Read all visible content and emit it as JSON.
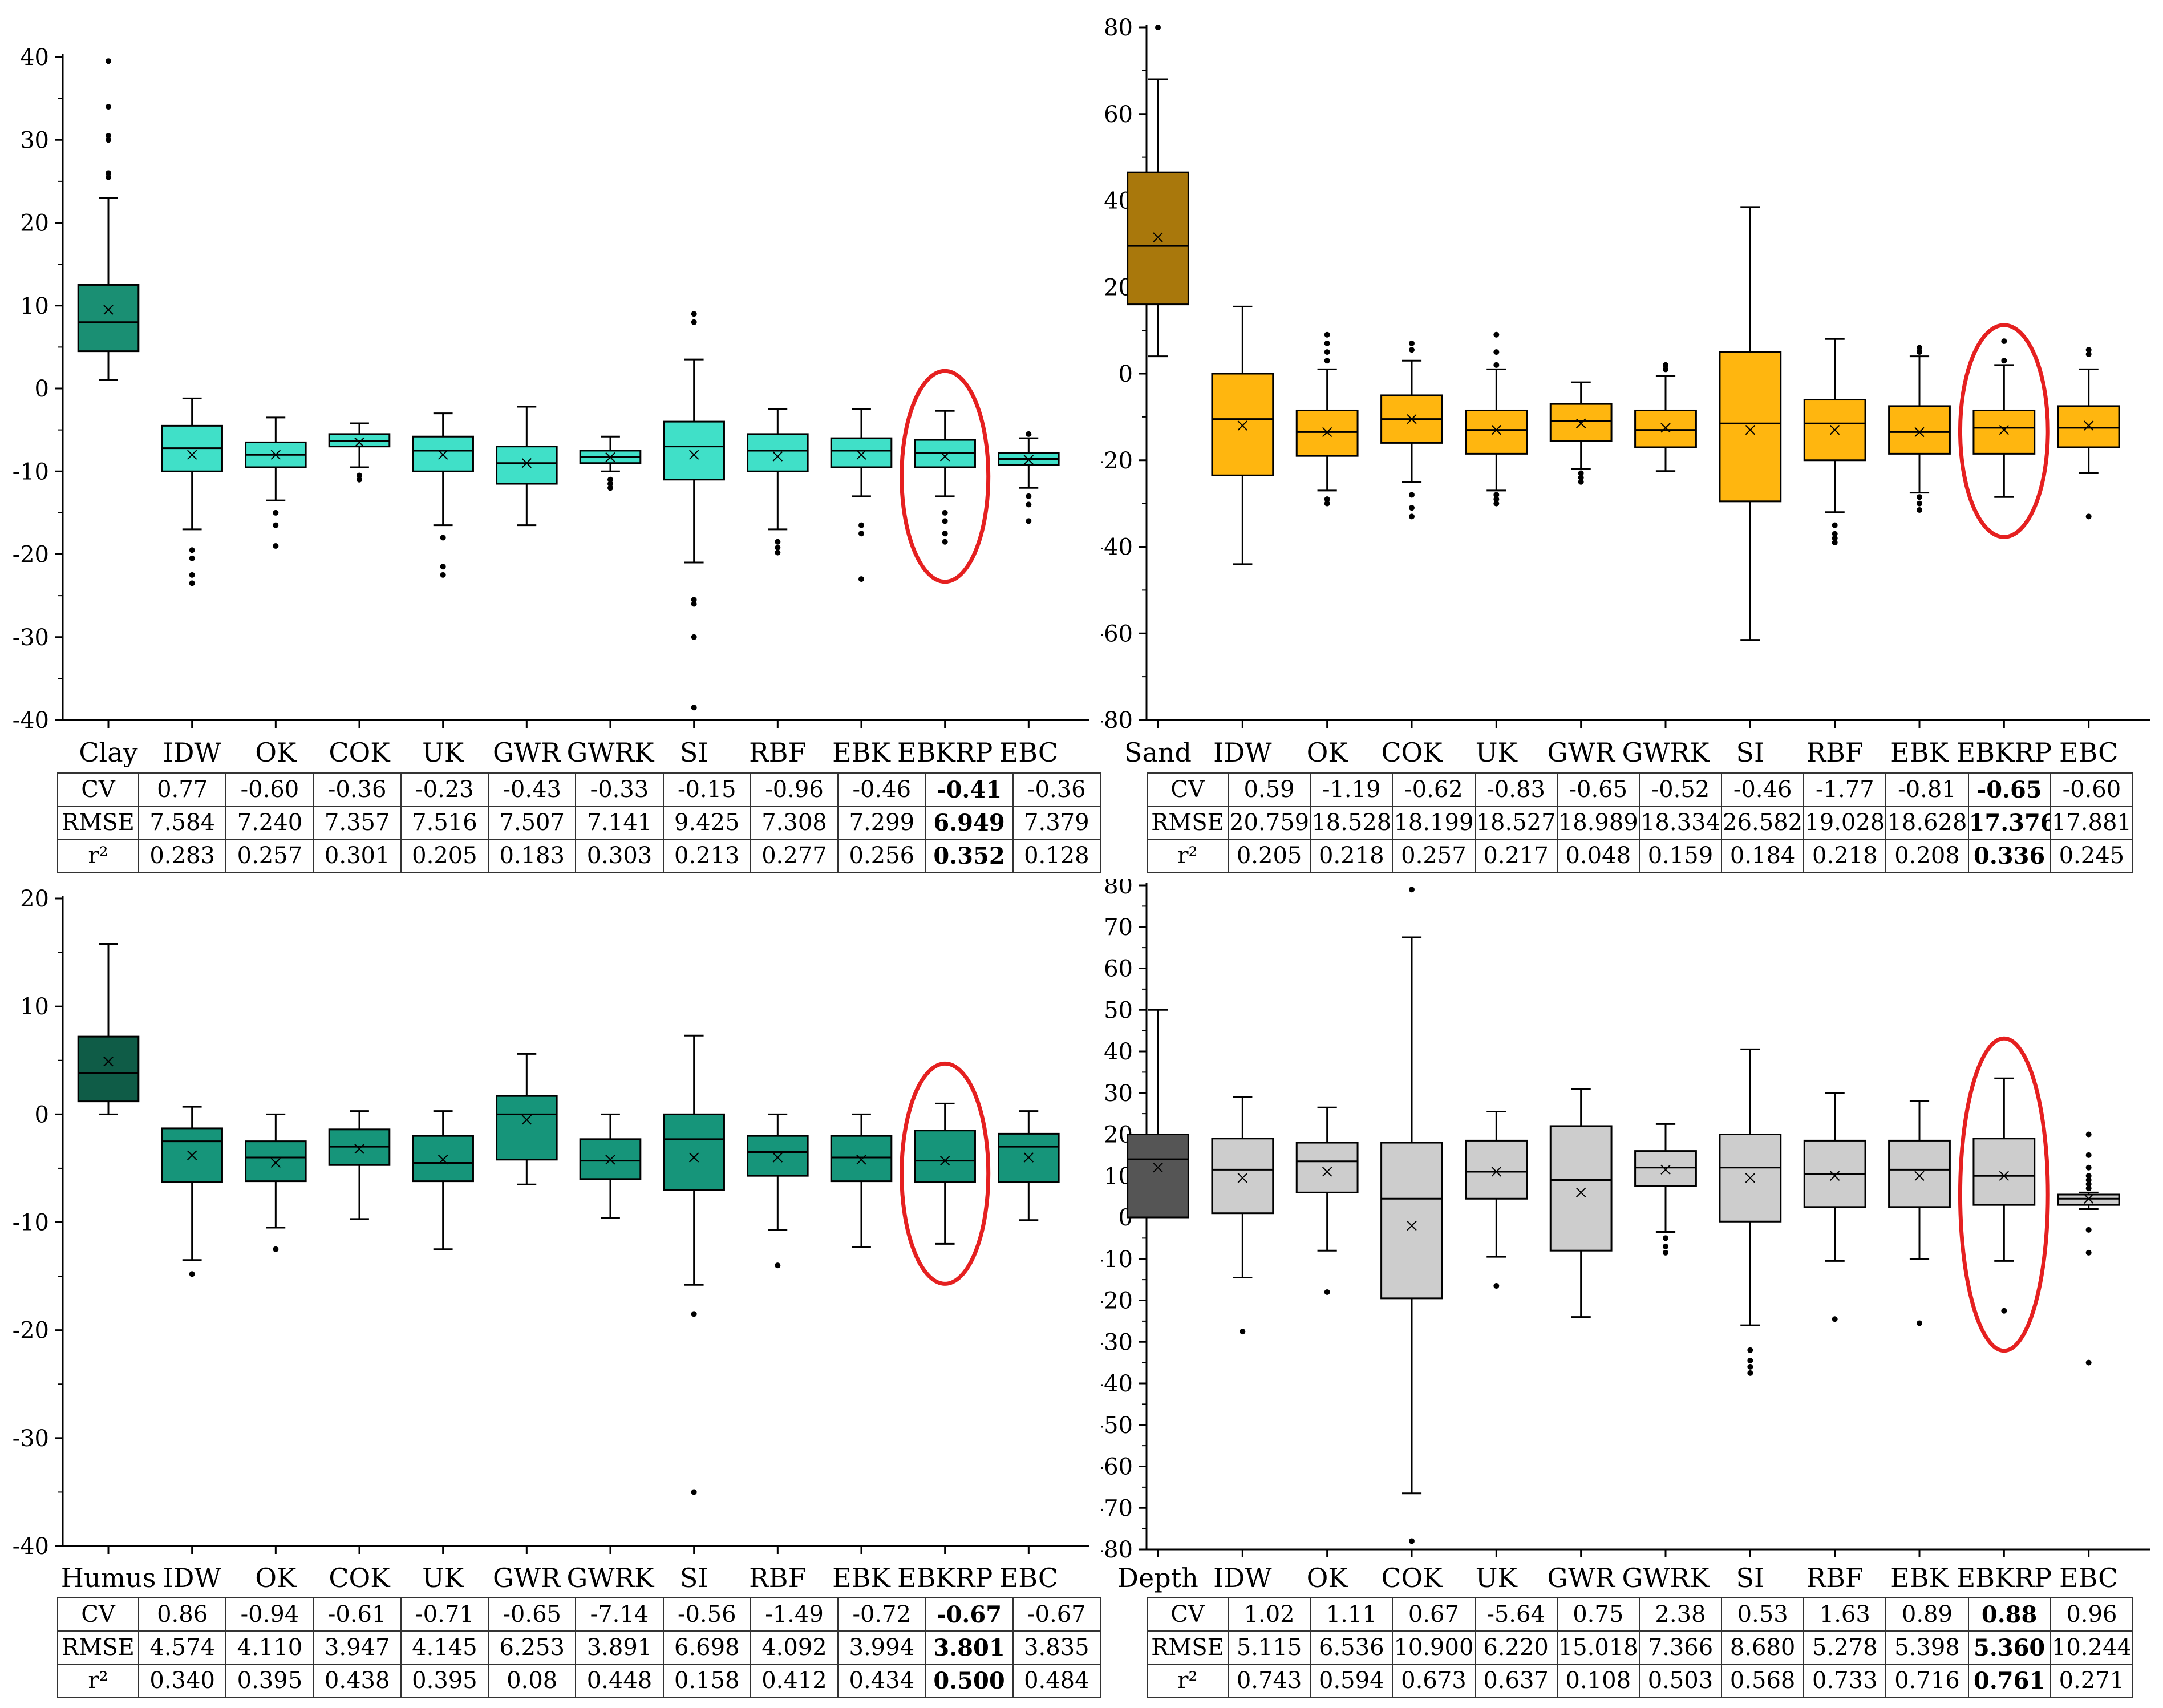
{
  "chart_data": [
    {
      "type": "box",
      "name": "clay",
      "ylim": [
        -40,
        40
      ],
      "yticks": [
        -40,
        -30,
        -20,
        -10,
        0,
        10,
        20,
        30,
        40
      ],
      "categories": [
        "Clay",
        "IDW",
        "OK",
        "COK",
        "UK",
        "GWR",
        "GWRK",
        "SI",
        "RBF",
        "EBK",
        "EBKRP",
        "EBC"
      ],
      "highlight_index": 10,
      "colors": {
        "first": "#1a8f73",
        "rest": "#40e0c8",
        "circle": "#e52020"
      },
      "boxes": [
        {
          "lo": 1,
          "q1": 4.5,
          "med": 8,
          "q3": 12.5,
          "hi": 23,
          "mean": 9.5,
          "out": [
            25.5,
            26,
            30,
            30.5,
            34,
            39.5
          ]
        },
        {
          "lo": -17,
          "q1": -10,
          "med": -7.2,
          "q3": -4.5,
          "hi": -1.2,
          "mean": -8,
          "out": [
            -19.5,
            -20.5,
            -22.5,
            -23.5
          ]
        },
        {
          "lo": -13.5,
          "q1": -9.5,
          "med": -8,
          "q3": -6.5,
          "hi": -3.5,
          "mean": -8,
          "out": [
            -15,
            -16.5,
            -19
          ]
        },
        {
          "lo": -9.5,
          "q1": -7,
          "med": -6.3,
          "q3": -5.5,
          "hi": -4.2,
          "mean": -6.5,
          "out": [
            -10.5,
            -11
          ]
        },
        {
          "lo": -16.5,
          "q1": -10,
          "med": -7.5,
          "q3": -5.8,
          "hi": -3,
          "mean": -8,
          "out": [
            -18,
            -21.5,
            -22.5
          ]
        },
        {
          "lo": -16.5,
          "q1": -11.5,
          "med": -9,
          "q3": -7,
          "hi": -2.2,
          "mean": -9,
          "out": []
        },
        {
          "lo": -10,
          "q1": -9,
          "med": -8.3,
          "q3": -7.5,
          "hi": -5.8,
          "mean": -8.3,
          "out": [
            -11,
            -11.5,
            -12
          ]
        },
        {
          "lo": -21,
          "q1": -11,
          "med": -7,
          "q3": -4,
          "hi": 3.5,
          "mean": -8,
          "out": [
            8,
            9,
            -25.5,
            -26,
            -30,
            -38.5
          ]
        },
        {
          "lo": -17,
          "q1": -10,
          "med": -7.5,
          "q3": -5.5,
          "hi": -2.5,
          "mean": -8.2,
          "out": [
            -18.5,
            -19.2,
            -19.8
          ]
        },
        {
          "lo": -13,
          "q1": -9.5,
          "med": -7.5,
          "q3": -6,
          "hi": -2.5,
          "mean": -8,
          "out": [
            -16.5,
            -17.5,
            -23
          ]
        },
        {
          "lo": -13,
          "q1": -9.5,
          "med": -7.8,
          "q3": -6.2,
          "hi": -2.7,
          "mean": -8.2,
          "out": [
            -15,
            -16,
            -17.5,
            -18.5
          ]
        },
        {
          "lo": -12,
          "q1": -9.2,
          "med": -8.5,
          "q3": -7.8,
          "hi": -6,
          "mean": -8.6,
          "out": [
            -5.5,
            -13,
            -14,
            -16
          ]
        }
      ]
    },
    {
      "type": "box",
      "name": "sand",
      "ylim": [
        -80,
        80
      ],
      "yticks": [
        -80,
        -60,
        -40,
        -20,
        0,
        20,
        40,
        60,
        80
      ],
      "categories": [
        "Sand",
        "IDW",
        "OK",
        "COK",
        "UK",
        "GWR",
        "GWRK",
        "SI",
        "RBF",
        "EBK",
        "EBKRP",
        "EBC"
      ],
      "highlight_index": 10,
      "colors": {
        "first": "#a9780c",
        "rest": "#ffb60f",
        "circle": "#e52020"
      },
      "boxes": [
        {
          "lo": 4,
          "q1": 16,
          "med": 29.5,
          "q3": 46.5,
          "hi": 68,
          "mean": 31.5,
          "out": [
            80
          ]
        },
        {
          "lo": -44,
          "q1": -23.5,
          "med": -10.5,
          "q3": 0,
          "hi": 15.5,
          "mean": -12,
          "out": []
        },
        {
          "lo": -27,
          "q1": -19,
          "med": -13.5,
          "q3": -8.5,
          "hi": 1,
          "mean": -13.5,
          "out": [
            3,
            5,
            7,
            9,
            -29,
            -30
          ]
        },
        {
          "lo": -25,
          "q1": -16,
          "med": -10.5,
          "q3": -5,
          "hi": 3,
          "mean": -10.5,
          "out": [
            5.5,
            7,
            -28,
            -31,
            -33
          ]
        },
        {
          "lo": -27,
          "q1": -18.5,
          "med": -13,
          "q3": -8.5,
          "hi": 1,
          "mean": -13,
          "out": [
            2,
            5,
            9,
            -28,
            -29,
            -30
          ]
        },
        {
          "lo": -22,
          "q1": -15.5,
          "med": -11,
          "q3": -7,
          "hi": -2,
          "mean": -11.5,
          "out": [
            -23,
            -24,
            -25
          ]
        },
        {
          "lo": -22.5,
          "q1": -17,
          "med": -13,
          "q3": -8.5,
          "hi": -0.5,
          "mean": -12.5,
          "out": [
            1,
            2
          ]
        },
        {
          "lo": -61.5,
          "q1": -29.5,
          "med": -11.5,
          "q3": 5,
          "hi": 38.5,
          "mean": -13,
          "out": []
        },
        {
          "lo": -32,
          "q1": -20,
          "med": -11.5,
          "q3": -6,
          "hi": 8,
          "mean": -13,
          "out": [
            -35,
            -37,
            -38,
            -39
          ]
        },
        {
          "lo": -27.5,
          "q1": -18.5,
          "med": -13.5,
          "q3": -7.5,
          "hi": 4,
          "mean": -13.5,
          "out": [
            5,
            6,
            -28.5,
            -30,
            -31.5
          ]
        },
        {
          "lo": -28.5,
          "q1": -18.5,
          "med": -12.5,
          "q3": -8.5,
          "hi": 2,
          "mean": -13,
          "out": [
            3,
            7.5
          ]
        },
        {
          "lo": -23,
          "q1": -17,
          "med": -12.5,
          "q3": -7.5,
          "hi": 1,
          "mean": -12,
          "out": [
            4.5,
            5.5,
            -33
          ]
        }
      ]
    },
    {
      "type": "box",
      "name": "humus",
      "ylim": [
        -40,
        20
      ],
      "yticks": [
        -40,
        -30,
        -20,
        -10,
        0,
        10,
        20
      ],
      "categories": [
        "Humus",
        "IDW",
        "OK",
        "COK",
        "UK",
        "GWR",
        "GWRK",
        "SI",
        "RBF",
        "EBK",
        "EBKRP",
        "EBC"
      ],
      "highlight_index": 10,
      "colors": {
        "first": "#0f5c47",
        "rest": "#16957a",
        "circle": "#e52020"
      },
      "boxes": [
        {
          "lo": 0,
          "q1": 1.2,
          "med": 3.8,
          "q3": 7.2,
          "hi": 15.8,
          "mean": 4.9,
          "out": []
        },
        {
          "lo": -13.5,
          "q1": -6.3,
          "med": -2.5,
          "q3": -1.3,
          "hi": 0.7,
          "mean": -3.8,
          "out": [
            -14.8
          ]
        },
        {
          "lo": -10.5,
          "q1": -6.2,
          "med": -4,
          "q3": -2.5,
          "hi": 0,
          "mean": -4.5,
          "out": [
            -12.5
          ]
        },
        {
          "lo": -9.7,
          "q1": -4.7,
          "med": -3,
          "q3": -1.4,
          "hi": 0.3,
          "mean": -3.2,
          "out": []
        },
        {
          "lo": -12.5,
          "q1": -6.2,
          "med": -4.5,
          "q3": -2,
          "hi": 0.3,
          "mean": -4.2,
          "out": []
        },
        {
          "lo": -6.5,
          "q1": -4.2,
          "med": 0,
          "q3": 1.7,
          "hi": 5.6,
          "mean": -0.5,
          "out": []
        },
        {
          "lo": -9.6,
          "q1": -6,
          "med": -4.3,
          "q3": -2.3,
          "hi": 0,
          "mean": -4.2,
          "out": []
        },
        {
          "lo": -15.8,
          "q1": -7,
          "med": -2.3,
          "q3": 0,
          "hi": 7.3,
          "mean": -4,
          "out": [
            -18.5,
            -35
          ]
        },
        {
          "lo": -10.7,
          "q1": -5.7,
          "med": -3.5,
          "q3": -2,
          "hi": 0,
          "mean": -4,
          "out": [
            -14
          ]
        },
        {
          "lo": -12.3,
          "q1": -6.2,
          "med": -4,
          "q3": -2,
          "hi": 0,
          "mean": -4.2,
          "out": []
        },
        {
          "lo": -12,
          "q1": -6.3,
          "med": -4.3,
          "q3": -1.5,
          "hi": 1,
          "mean": -4.3,
          "out": []
        },
        {
          "lo": -9.8,
          "q1": -6.3,
          "med": -3,
          "q3": -1.8,
          "hi": 0.3,
          "mean": -4,
          "out": []
        }
      ]
    },
    {
      "type": "box",
      "name": "depth",
      "ylim": [
        -80,
        80
      ],
      "yticks": [
        -80,
        -70,
        -60,
        -50,
        -40,
        -30,
        -20,
        -10,
        0,
        10,
        20,
        30,
        40,
        50,
        60,
        70,
        80
      ],
      "categories": [
        "Depth",
        "IDW",
        "OK",
        "COK",
        "UK",
        "GWR",
        "GWRK",
        "SI",
        "RBF",
        "EBK",
        "EBKRP",
        "EBC"
      ],
      "highlight_index": 10,
      "colors": {
        "first": "#555555",
        "rest": "#cdcdcd",
        "circle": "#e52020"
      },
      "boxes": [
        {
          "lo": 0,
          "q1": 0,
          "med": 14,
          "q3": 20,
          "hi": 50,
          "mean": 12,
          "out": []
        },
        {
          "lo": -14.5,
          "q1": 1,
          "med": 11.5,
          "q3": 19,
          "hi": 29,
          "mean": 9.5,
          "out": [
            -27.5
          ]
        },
        {
          "lo": -8,
          "q1": 6,
          "med": 13.5,
          "q3": 18,
          "hi": 26.5,
          "mean": 11,
          "out": [
            -18
          ]
        },
        {
          "lo": -66.5,
          "q1": -19.5,
          "med": 4.5,
          "q3": 18,
          "hi": 67.5,
          "mean": -2,
          "out": [
            79,
            -78
          ]
        },
        {
          "lo": -9.5,
          "q1": 4.5,
          "med": 11,
          "q3": 18.5,
          "hi": 25.5,
          "mean": 11,
          "out": [
            -16.5
          ]
        },
        {
          "lo": -24,
          "q1": -8,
          "med": 9,
          "q3": 22,
          "hi": 31,
          "mean": 6,
          "out": []
        },
        {
          "lo": -3.5,
          "q1": 7.5,
          "med": 12,
          "q3": 16,
          "hi": 22.5,
          "mean": 11.5,
          "out": [
            -5,
            -7,
            -8.5
          ]
        },
        {
          "lo": -26,
          "q1": -1,
          "med": 12,
          "q3": 20,
          "hi": 40.5,
          "mean": 9.5,
          "out": [
            -32,
            -34.5,
            -36,
            -37.5
          ]
        },
        {
          "lo": -10.5,
          "q1": 2.5,
          "med": 10.5,
          "q3": 18.5,
          "hi": 30,
          "mean": 10,
          "out": [
            -24.5
          ]
        },
        {
          "lo": -10,
          "q1": 2.5,
          "med": 11.5,
          "q3": 18.5,
          "hi": 28,
          "mean": 10,
          "out": [
            -25.5
          ]
        },
        {
          "lo": -10.5,
          "q1": 3,
          "med": 10,
          "q3": 19,
          "hi": 33.5,
          "mean": 10,
          "out": [
            -22.5
          ]
        },
        {
          "lo": 2,
          "q1": 3,
          "med": 4.5,
          "q3": 5.5,
          "hi": 6,
          "mean": 4.5,
          "out": [
            7,
            8,
            9,
            10,
            12,
            15,
            20,
            -3,
            -8.5,
            -35
          ]
        }
      ]
    }
  ],
  "tables": [
    {
      "rows": [
        {
          "label": "CV",
          "values": [
            "0.77",
            "-0.60",
            "-0.36",
            "-0.23",
            "-0.43",
            "-0.33",
            "-0.15",
            "-0.96",
            "-0.46",
            "-0.41",
            "-0.36"
          ]
        },
        {
          "label": "RMSE",
          "values": [
            "7.584",
            "7.240",
            "7.357",
            "7.516",
            "7.507",
            "7.141",
            "9.425",
            "7.308",
            "7.299",
            "6.949",
            "7.379"
          ]
        },
        {
          "label": "r²",
          "values": [
            "0.283",
            "0.257",
            "0.301",
            "0.205",
            "0.183",
            "0.303",
            "0.213",
            "0.277",
            "0.256",
            "0.352",
            "0.128"
          ]
        }
      ]
    },
    {
      "rows": [
        {
          "label": "CV",
          "values": [
            "0.59",
            "-1.19",
            "-0.62",
            "-0.83",
            "-0.65",
            "-0.52",
            "-0.46",
            "-1.77",
            "-0.81",
            "-0.65",
            "-0.60"
          ]
        },
        {
          "label": "RMSE",
          "values": [
            "20.759",
            "18.528",
            "18.199",
            "18.527",
            "18.989",
            "18.334",
            "26.582",
            "19.028",
            "18.628",
            "17.376",
            "17.881"
          ]
        },
        {
          "label": "r²",
          "values": [
            "0.205",
            "0.218",
            "0.257",
            "0.217",
            "0.048",
            "0.159",
            "0.184",
            "0.218",
            "0.208",
            "0.336",
            "0.245"
          ]
        }
      ]
    },
    {
      "rows": [
        {
          "label": "CV",
          "values": [
            "0.86",
            "-0.94",
            "-0.61",
            "-0.71",
            "-0.65",
            "-7.14",
            "-0.56",
            "-1.49",
            "-0.72",
            "-0.67",
            "-0.67"
          ]
        },
        {
          "label": "RMSE",
          "values": [
            "4.574",
            "4.110",
            "3.947",
            "4.145",
            "6.253",
            "3.891",
            "6.698",
            "4.092",
            "3.994",
            "3.801",
            "3.835"
          ]
        },
        {
          "label": "r²",
          "values": [
            "0.340",
            "0.395",
            "0.438",
            "0.395",
            "0.08",
            "0.448",
            "0.158",
            "0.412",
            "0.434",
            "0.500",
            "0.484"
          ]
        }
      ]
    },
    {
      "rows": [
        {
          "label": "CV",
          "values": [
            "1.02",
            "1.11",
            "0.67",
            "-5.64",
            "0.75",
            "2.38",
            "0.53",
            "1.63",
            "0.89",
            "0.88",
            "0.96"
          ]
        },
        {
          "label": "RMSE",
          "values": [
            "5.115",
            "6.536",
            "10.900",
            "6.220",
            "15.018",
            "7.366",
            "8.680",
            "5.278",
            "5.398",
            "5.360",
            "10.244"
          ]
        },
        {
          "label": "r²",
          "values": [
            "0.743",
            "0.594",
            "0.673",
            "0.637",
            "0.108",
            "0.503",
            "0.568",
            "0.733",
            "0.716",
            "0.761",
            "0.271"
          ]
        }
      ]
    }
  ]
}
